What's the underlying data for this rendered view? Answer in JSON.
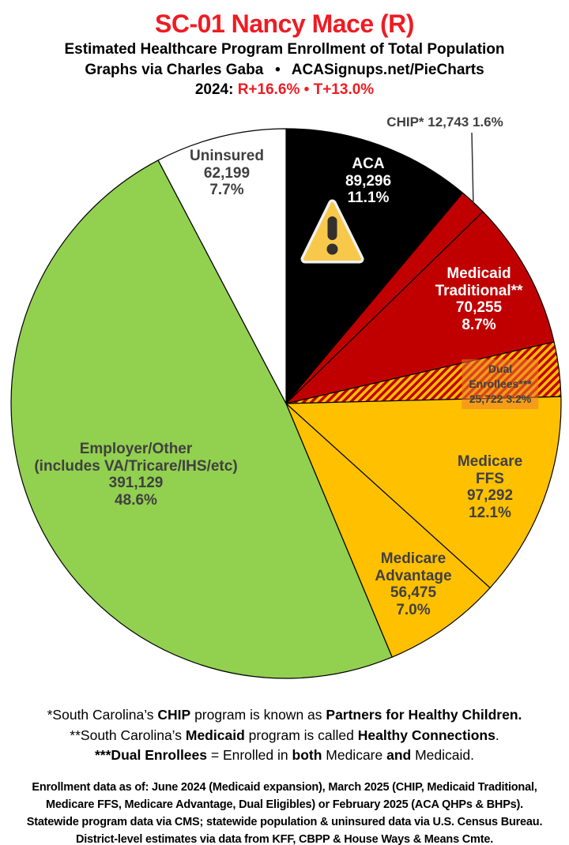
{
  "header": {
    "title": "SC-01 Nancy Mace (R)",
    "subtitle": "Estimated Healthcare Program Enrollment of Total Population",
    "credit": "Graphs via Charles Gaba  •  ACASignups.net/PieCharts",
    "partisan_segments": [
      {
        "t": "2024: ",
        "c": "#000000"
      },
      {
        "t": "R+16.6%",
        "c": "#ee1c23"
      },
      {
        "t": " • ",
        "c": "#ee1c23"
      },
      {
        "t": "T+13.0%",
        "c": "#ee1c23"
      }
    ]
  },
  "icons": {
    "aca_warning": "warning-triangle-exclamation"
  },
  "chart_data": {
    "type": "pie",
    "title": "Estimated Healthcare Program Enrollment of Total Population",
    "units": "people",
    "start_angle_deg": 0,
    "direction": "clockwise",
    "hatch_colors": [
      "#c00000",
      "#ffc000"
    ],
    "slices": [
      {
        "id": "aca",
        "label": "ACA",
        "value": 89296,
        "value_text": "89,296",
        "pct": 11.1,
        "fill": "#000000",
        "text_color": "#ffffff",
        "label_text": "ACA\n89,296\n11.1%"
      },
      {
        "id": "chip",
        "label": "CHIP",
        "value": 12743,
        "value_text": "12,743",
        "pct": 1.6,
        "fill": "#c00000",
        "text_color": "#404040",
        "callout": true,
        "label_text": "CHIP* 12,743 1.6%"
      },
      {
        "id": "medicaid-traditional",
        "label": "Medicaid Traditional",
        "value": 70255,
        "value_text": "70,255",
        "pct": 8.7,
        "fill": "#c00000",
        "text_color": "#ffffff",
        "label_text": "Medicaid\nTraditional**\n70,255\n8.7%"
      },
      {
        "id": "dual-enrollees",
        "label": "Dual Enrollees",
        "value": 25722,
        "value_text": "25,722",
        "pct": 3.2,
        "fill": "hatch",
        "text_color": "#404040",
        "label_text": "Dual Enrollees***\n25,722 3.2%"
      },
      {
        "id": "medicare-ffs",
        "label": "Medicare FFS",
        "value": 97292,
        "value_text": "97,292",
        "pct": 12.1,
        "fill": "#ffc000",
        "text_color": "#404040",
        "label_text": "Medicare FFS\n97,292\n12.1%"
      },
      {
        "id": "medicare-advantage",
        "label": "Medicare Advantage",
        "value": 56475,
        "value_text": "56,475",
        "pct": 7.0,
        "fill": "#ffc000",
        "text_color": "#404040",
        "label_text": "Medicare\nAdvantage\n56,475\n7.0%"
      },
      {
        "id": "employer-other",
        "label": "Employer/Other (includes VA/Tricare/IHS/etc)",
        "value": 391129,
        "value_text": "391,129",
        "pct": 48.6,
        "fill": "#92d050",
        "text_color": "#404040",
        "label_text": "Employer/Other\n(includes VA/Tricare/IHS/etc)\n391,129\n48.6%"
      },
      {
        "id": "uninsured",
        "label": "Uninsured",
        "value": 62199,
        "value_text": "62,199",
        "pct": 7.7,
        "fill": "#ffffff",
        "text_color": "#404040",
        "label_text": "Uninsured\n62,199\n7.7%"
      }
    ]
  },
  "footnotes": {
    "line1": [
      {
        "t": "*South Carolina’s ",
        "b": false
      },
      {
        "t": "CHIP",
        "b": true
      },
      {
        "t": " program is known as ",
        "b": false
      },
      {
        "t": "Partners for Healthy Children.",
        "b": true
      }
    ],
    "line2": [
      {
        "t": "**South Carolina’s ",
        "b": false
      },
      {
        "t": "Medicaid",
        "b": true
      },
      {
        "t": " program is called ",
        "b": false
      },
      {
        "t": "Healthy Connections",
        "b": true
      },
      {
        "t": ".",
        "b": false
      }
    ],
    "line3": [
      {
        "t": "***Dual Enrollees",
        "b": true
      },
      {
        "t": " = Enrolled in ",
        "b": false
      },
      {
        "t": "both",
        "b": true
      },
      {
        "t": " Medicare ",
        "b": false
      },
      {
        "t": "and",
        "b": true
      },
      {
        "t": " Medicaid.",
        "b": false
      }
    ]
  },
  "source": {
    "text": "Enrollment data as of: June 2024 (Medicaid expansion), March 2025 (CHIP, Medicaid Traditional,\nMedicare FFS, Medicare Advantage, Dual Eligibles) or February 2025 (ACA QHPs & BHPs).\nStatewide program data via CMS; statewide population & uninsured data via U.S. Census Bureau.\nDistrict-level estimates via data from KFF, CBPP & House Ways & Means Cmte."
  }
}
